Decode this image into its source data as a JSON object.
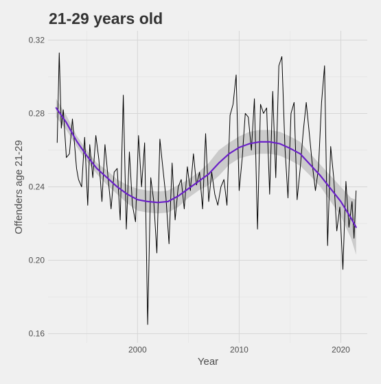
{
  "chart_data": {
    "type": "line",
    "title": "21-29 years old",
    "xlabel": "Year",
    "ylabel": "Offenders age 21-29",
    "xlim": [
      1991.2,
      2022.6
    ],
    "ylim": [
      0.155,
      0.325
    ],
    "x_ticks": [
      2000,
      2010,
      2020
    ],
    "y_ticks": [
      0.16,
      0.2,
      0.24,
      0.28,
      0.32
    ],
    "y_tick_labels": [
      "0.16",
      "0.20",
      "0.24",
      "0.28",
      "0.32"
    ],
    "grid": true,
    "legend": "none",
    "series": [
      {
        "kind": "observed",
        "color": "#000000",
        "x": [
          1992.1,
          1992.3,
          1992.5,
          1992.7,
          1993.0,
          1993.3,
          1993.6,
          1994.0,
          1994.2,
          1994.5,
          1994.8,
          1995.1,
          1995.3,
          1995.6,
          1995.9,
          1996.2,
          1996.5,
          1996.8,
          1997.1,
          1997.4,
          1997.7,
          1998.0,
          1998.3,
          1998.6,
          1998.9,
          1999.2,
          1999.5,
          1999.8,
          2000.1,
          2000.4,
          2000.7,
          2001.0,
          2001.3,
          2001.6,
          2001.9,
          2002.2,
          2002.5,
          2002.8,
          2003.1,
          2003.4,
          2003.7,
          2004.0,
          2004.3,
          2004.6,
          2004.9,
          2005.2,
          2005.5,
          2005.8,
          2006.1,
          2006.4,
          2006.7,
          2007.0,
          2007.3,
          2007.6,
          2007.9,
          2008.2,
          2008.5,
          2008.8,
          2009.1,
          2009.4,
          2009.7,
          2010.0,
          2010.3,
          2010.6,
          2010.9,
          2011.2,
          2011.5,
          2011.8,
          2012.1,
          2012.4,
          2012.7,
          2013.0,
          2013.3,
          2013.6,
          2013.9,
          2014.2,
          2014.5,
          2014.8,
          2015.1,
          2015.4,
          2015.7,
          2016.0,
          2016.3,
          2016.6,
          2016.9,
          2017.2,
          2017.5,
          2017.8,
          2018.1,
          2018.4,
          2018.7,
          2019.0,
          2019.3,
          2019.6,
          2019.9,
          2020.2,
          2020.5,
          2020.8,
          2021.1,
          2021.3,
          2021.5
        ],
        "y": [
          0.264,
          0.313,
          0.272,
          0.282,
          0.256,
          0.258,
          0.277,
          0.25,
          0.244,
          0.24,
          0.267,
          0.23,
          0.263,
          0.245,
          0.268,
          0.255,
          0.232,
          0.263,
          0.245,
          0.228,
          0.248,
          0.25,
          0.222,
          0.29,
          0.217,
          0.259,
          0.23,
          0.221,
          0.268,
          0.24,
          0.264,
          0.165,
          0.245,
          0.232,
          0.204,
          0.266,
          0.25,
          0.234,
          0.209,
          0.253,
          0.222,
          0.24,
          0.244,
          0.228,
          0.251,
          0.238,
          0.258,
          0.241,
          0.248,
          0.228,
          0.269,
          0.232,
          0.248,
          0.236,
          0.23,
          0.24,
          0.244,
          0.23,
          0.279,
          0.285,
          0.301,
          0.238,
          0.256,
          0.28,
          0.278,
          0.26,
          0.288,
          0.217,
          0.285,
          0.28,
          0.283,
          0.236,
          0.292,
          0.245,
          0.306,
          0.311,
          0.262,
          0.234,
          0.28,
          0.286,
          0.233,
          0.25,
          0.27,
          0.286,
          0.269,
          0.252,
          0.238,
          0.25,
          0.286,
          0.306,
          0.208,
          0.262,
          0.245,
          0.216,
          0.229,
          0.195,
          0.243,
          0.218,
          0.232,
          0.212,
          0.238
        ]
      },
      {
        "kind": "smooth",
        "color": "#6a20c8",
        "band_color": "#bfbfbf",
        "x": [
          1992,
          1993,
          1994,
          1995,
          1996,
          1997,
          1998,
          1999,
          2000,
          2001,
          2002,
          2003,
          2004,
          2005,
          2006,
          2007,
          2008,
          2009,
          2010,
          2011,
          2012,
          2013,
          2014,
          2015,
          2016,
          2017,
          2018,
          2019,
          2020,
          2021,
          2021.5
        ],
        "y": [
          0.283,
          0.275,
          0.265,
          0.257,
          0.25,
          0.245,
          0.24,
          0.236,
          0.233,
          0.232,
          0.2315,
          0.232,
          0.235,
          0.239,
          0.243,
          0.247,
          0.253,
          0.258,
          0.2615,
          0.2635,
          0.2645,
          0.2645,
          0.2635,
          0.261,
          0.258,
          0.252,
          0.246,
          0.239,
          0.232,
          0.223,
          0.218
        ],
        "lower": [
          0.278,
          0.271,
          0.262,
          0.254,
          0.247,
          0.241,
          0.236,
          0.231,
          0.227,
          0.226,
          0.2255,
          0.226,
          0.229,
          0.234,
          0.238,
          0.241,
          0.246,
          0.252,
          0.2555,
          0.257,
          0.258,
          0.258,
          0.257,
          0.2545,
          0.2515,
          0.246,
          0.24,
          0.232,
          0.224,
          0.212,
          0.203
        ],
        "upper": [
          0.288,
          0.279,
          0.268,
          0.26,
          0.253,
          0.249,
          0.244,
          0.241,
          0.239,
          0.238,
          0.2375,
          0.238,
          0.241,
          0.244,
          0.248,
          0.253,
          0.26,
          0.264,
          0.2675,
          0.27,
          0.271,
          0.271,
          0.27,
          0.2675,
          0.2645,
          0.258,
          0.252,
          0.246,
          0.24,
          0.234,
          0.233
        ]
      }
    ]
  }
}
